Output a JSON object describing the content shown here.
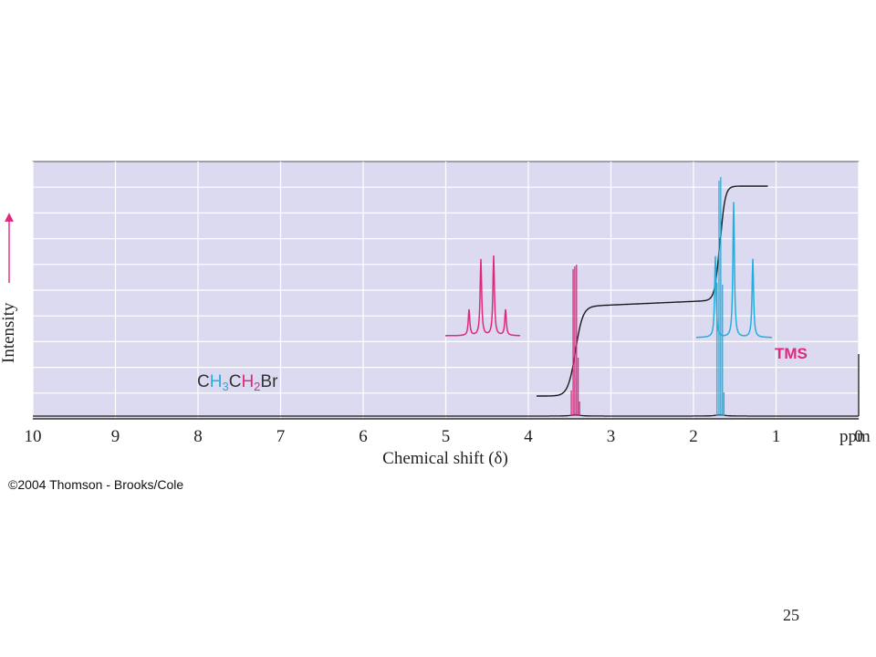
{
  "chart_data": {
    "type": "line",
    "xlabel": "Chemical shift (δ)",
    "ylabel": "Intensity",
    "xlim": [
      10,
      0
    ],
    "x_unit": "ppm",
    "x_ticks": [
      "10",
      "9",
      "8",
      "7",
      "6",
      "5",
      "4",
      "3",
      "2",
      "1",
      "0"
    ],
    "grid": true,
    "colors": {
      "ch2": "#e0287e",
      "ch3": "#22aee0",
      "trace": "#1a1a1a",
      "plot_background": "#dcdaf0",
      "grid": "#ffffff"
    },
    "formula": {
      "part1": "C",
      "part2": "H",
      "part3": "3",
      "part4": "C",
      "part5": "H",
      "part6": "2",
      "part7": "Br"
    },
    "annotations": {
      "tms": "TMS"
    },
    "peaks": [
      {
        "group": "CH2",
        "shift": 3.43,
        "multiplicity": "quartet",
        "inset_intensities": [
          0.3,
          0.88,
          0.92,
          0.3
        ],
        "color": "#e0287e"
      },
      {
        "group": "CH3",
        "shift": 1.68,
        "multiplicity": "triplet",
        "inset_intensities": [
          0.6,
          1.0,
          0.58
        ],
        "color": "#22aee0"
      },
      {
        "group": "TMS",
        "shift": 0.0,
        "multiplicity": "singlet",
        "color": "#1a1a1a"
      }
    ],
    "integral": {
      "start_shift": 3.9,
      "end_shift": 1.1,
      "steps": [
        {
          "shift": 3.43,
          "relative_area": 2
        },
        {
          "shift": 1.68,
          "relative_area": 3
        }
      ]
    }
  },
  "footer": {
    "copyright": "©2004 Thomson - Brooks/Cole",
    "page_number": "25"
  }
}
